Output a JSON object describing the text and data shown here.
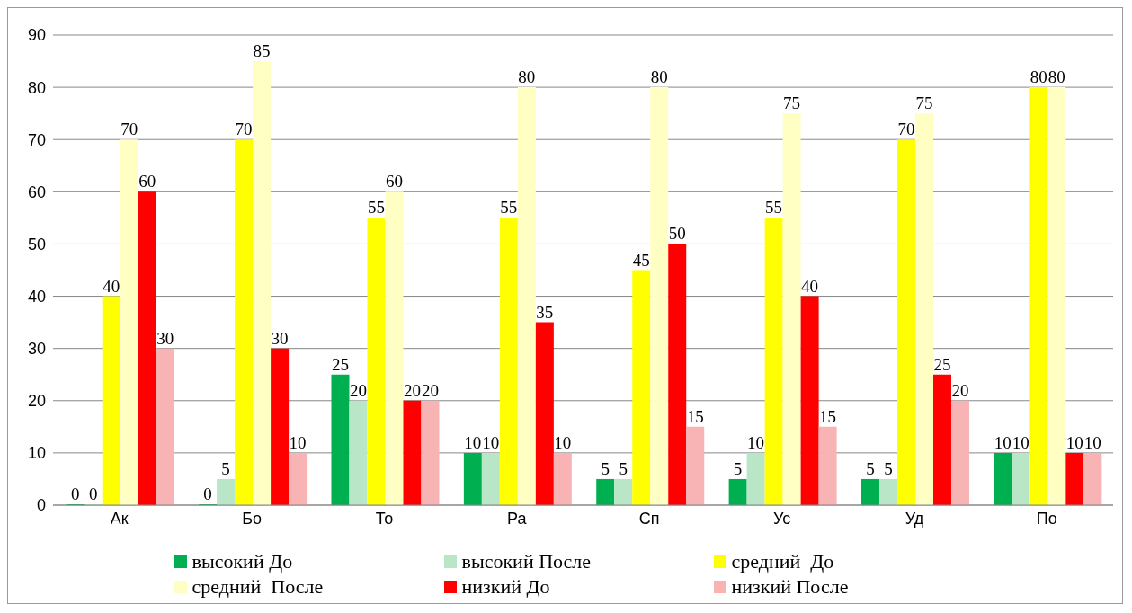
{
  "chart_data": {
    "type": "bar",
    "categories": [
      "Ак",
      "Бо",
      "То",
      "Ра",
      "Сп",
      "Ус",
      "Уд",
      "По"
    ],
    "series": [
      {
        "name": "высокий До",
        "color": "#00b050",
        "values": [
          0,
          0,
          25,
          10,
          5,
          5,
          5,
          10
        ]
      },
      {
        "name": "высокий После",
        "color": "#b9e6c6",
        "values": [
          0,
          5,
          20,
          10,
          5,
          10,
          5,
          10
        ]
      },
      {
        "name": "средний  До",
        "color": "#ffff00",
        "values": [
          40,
          70,
          55,
          55,
          45,
          55,
          70,
          80
        ]
      },
      {
        "name": "средний  После",
        "color": "#ffffc4",
        "values": [
          70,
          85,
          60,
          80,
          80,
          75,
          75,
          80
        ]
      },
      {
        "name": "низкий До",
        "color": "#ff0000",
        "values": [
          60,
          30,
          20,
          35,
          50,
          40,
          25,
          10
        ]
      },
      {
        "name": "низкий После",
        "color": "#f8b4b4",
        "values": [
          30,
          10,
          20,
          10,
          15,
          15,
          20,
          10
        ]
      }
    ],
    "ylim": [
      0,
      90
    ],
    "yticks": [
      0,
      10,
      20,
      30,
      40,
      50,
      60,
      70,
      80,
      90
    ],
    "grid": "y",
    "legend": "bottom",
    "data_labels": true
  }
}
